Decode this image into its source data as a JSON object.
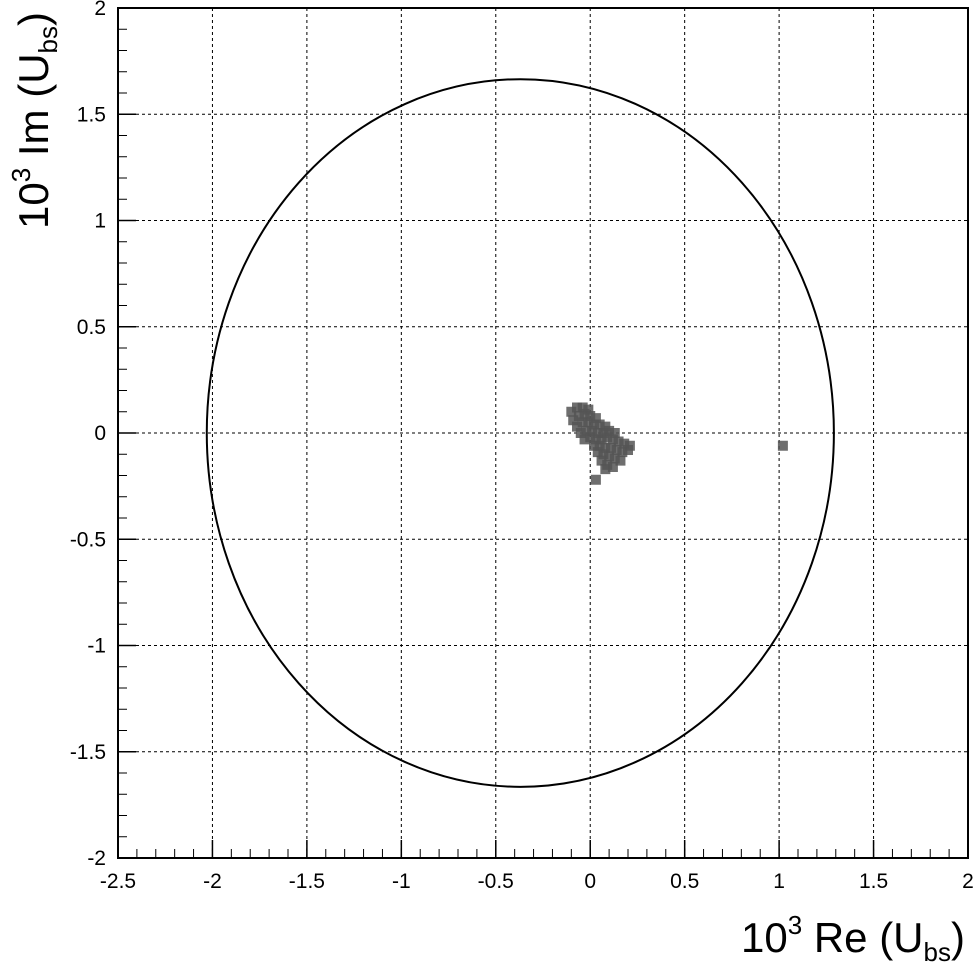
{
  "chart_data": {
    "type": "scatter",
    "title": "",
    "xlabel": {
      "prefix": "10",
      "exponent": "3",
      "name": " Re (U",
      "subscript": "bs",
      "suffix": ")"
    },
    "ylabel": {
      "prefix": "10",
      "exponent": "3",
      "name": " Im (U",
      "subscript": "bs",
      "suffix": ")"
    },
    "xlim": [
      -2.5,
      2.0
    ],
    "ylim": [
      -2.0,
      2.0
    ],
    "grid": true,
    "x_ticks": [
      -2.5,
      -2,
      -1.5,
      -1,
      -0.5,
      0,
      0.5,
      1,
      1.5,
      2
    ],
    "x_tick_labels": [
      "-2.5",
      "-2",
      "-1.5",
      "-1",
      "-0.5",
      "0",
      "0.5",
      "1",
      "1.5",
      "2"
    ],
    "y_ticks": [
      -2,
      -1.5,
      -1,
      -0.5,
      0,
      0.5,
      1,
      1.5,
      2
    ],
    "y_tick_labels": [
      "-2",
      "-1.5",
      "-1",
      "-0.5",
      "0",
      "0.5",
      "1",
      "1.5",
      "2"
    ],
    "series": [
      {
        "kind": "ring",
        "color": "#000000",
        "center": [
          -0.37,
          0.0
        ],
        "radius_x": 1.66,
        "radius_y": 1.665,
        "x_min": -2.04,
        "x_max": 1.29,
        "y_min": -1.66,
        "y_max": 1.67
      },
      {
        "kind": "cluster",
        "color": "#555555",
        "points": [
          [
            -0.1,
            0.1
          ],
          [
            -0.07,
            0.12
          ],
          [
            -0.04,
            0.12
          ],
          [
            -0.01,
            0.11
          ],
          [
            -0.09,
            0.06
          ],
          [
            -0.06,
            0.08
          ],
          [
            -0.03,
            0.09
          ],
          [
            0.0,
            0.08
          ],
          [
            0.03,
            0.07
          ],
          [
            -0.07,
            0.03
          ],
          [
            -0.04,
            0.05
          ],
          [
            -0.01,
            0.05
          ],
          [
            0.02,
            0.04
          ],
          [
            0.05,
            0.04
          ],
          [
            0.08,
            0.03
          ],
          [
            -0.05,
            0.0
          ],
          [
            -0.02,
            0.01
          ],
          [
            0.01,
            0.01
          ],
          [
            0.04,
            0.0
          ],
          [
            0.07,
            0.0
          ],
          [
            0.1,
            0.01
          ],
          [
            0.13,
            0.0
          ],
          [
            -0.03,
            -0.03
          ],
          [
            0.0,
            -0.02
          ],
          [
            0.03,
            -0.03
          ],
          [
            0.06,
            -0.03
          ],
          [
            0.09,
            -0.02
          ],
          [
            0.12,
            -0.03
          ],
          [
            0.15,
            -0.04
          ],
          [
            0.18,
            -0.05
          ],
          [
            0.21,
            -0.06
          ],
          [
            0.02,
            -0.06
          ],
          [
            0.05,
            -0.06
          ],
          [
            0.08,
            -0.07
          ],
          [
            0.11,
            -0.07
          ],
          [
            0.14,
            -0.08
          ],
          [
            0.17,
            -0.09
          ],
          [
            0.2,
            -0.08
          ],
          [
            0.04,
            -0.09
          ],
          [
            0.07,
            -0.1
          ],
          [
            0.1,
            -0.11
          ],
          [
            0.13,
            -0.12
          ],
          [
            0.16,
            -0.13
          ],
          [
            0.06,
            -0.13
          ],
          [
            0.09,
            -0.15
          ],
          [
            0.12,
            -0.16
          ],
          [
            0.08,
            -0.17
          ],
          [
            0.03,
            -0.22
          ],
          [
            1.02,
            -0.06
          ]
        ]
      }
    ]
  }
}
